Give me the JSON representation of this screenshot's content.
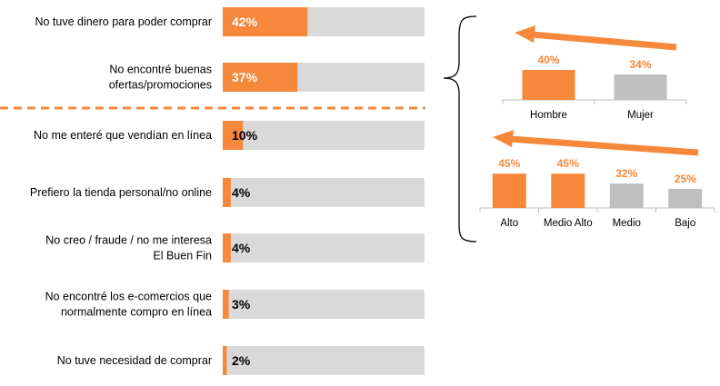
{
  "colors": {
    "accent": "#F5883A",
    "track": "#D9D9D9",
    "gray_bar": "#BFBFBF",
    "text": "#000000",
    "pct_on_bar": "#FFFFFF"
  },
  "chart_data": [
    {
      "type": "bar",
      "orientation": "horizontal",
      "categories": [
        [
          "No tuve dinero para poder comprar"
        ],
        [
          "No encontré buenas",
          "ofertas/promociones"
        ],
        [
          "No me enteré que vendían en línea"
        ],
        [
          "Prefiero la tienda personal/no online"
        ],
        [
          "No creo / fraude / no me interesa",
          "El Buen Fin"
        ],
        [
          "No encontré los e-comercios que",
          "normalmente compro en línea"
        ],
        [
          "No tuve necesidad de comprar"
        ]
      ],
      "values": [
        42,
        37,
        10,
        4,
        4,
        3,
        2
      ],
      "labels": [
        "42%",
        "37%",
        "10%",
        "4%",
        "4%",
        "3%",
        "2%"
      ],
      "xlim": [
        0,
        100
      ],
      "dashed_separator_after_index": 1
    },
    {
      "type": "bar",
      "categories": [
        "Hombre",
        "Mujer"
      ],
      "values": [
        40,
        34
      ],
      "labels": [
        "40%",
        "34%"
      ],
      "highlight": [
        true,
        false
      ]
    },
    {
      "type": "bar",
      "categories": [
        "Alto",
        "Medio Alto",
        "Medio",
        "Bajo"
      ],
      "values": [
        45,
        45,
        32,
        25
      ],
      "labels": [
        "45%",
        "45%",
        "32%",
        "25%"
      ],
      "highlight": [
        true,
        true,
        false,
        false
      ]
    }
  ]
}
